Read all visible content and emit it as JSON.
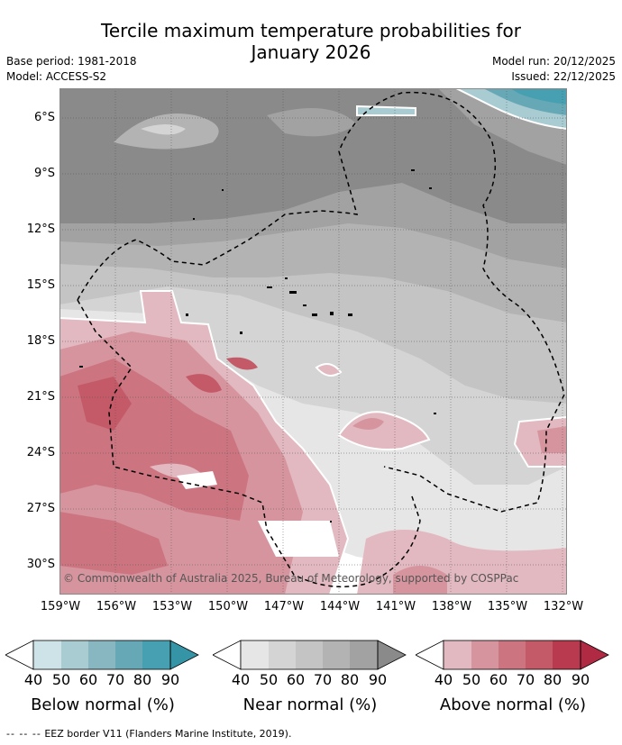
{
  "header": {
    "title_line1": "Tercile maximum temperature probabilities for",
    "title_line2": "January 2026",
    "base_period": "Base period: 1981-2018",
    "model": "Model: ACCESS-S2",
    "model_run": "Model run: 20/12/2025",
    "issued": "Issued: 22/12/2025"
  },
  "map": {
    "y_labels": [
      "6°S",
      "9°S",
      "12°S",
      "15°S",
      "18°S",
      "21°S",
      "24°S",
      "27°S",
      "30°S"
    ],
    "x_labels": [
      "159°W",
      "156°W",
      "153°W",
      "150°W",
      "147°W",
      "144°W",
      "141°W",
      "138°W",
      "135°W",
      "132°W"
    ],
    "copyright": "© Commonwealth of Australia 2025, Bureau of Meteorology, supported by COSPPac"
  },
  "legend": {
    "ticks": [
      "40",
      "50",
      "60",
      "70",
      "80",
      "90"
    ],
    "below": {
      "title": "Below normal (%)",
      "colors": [
        "#cde3e8",
        "#a9cbd2",
        "#88b7c2",
        "#67a8b6",
        "#46a0b1",
        "#3594a6"
      ]
    },
    "near": {
      "title": "Near normal (%)",
      "colors": [
        "#e6e6e6",
        "#d4d4d4",
        "#c4c4c4",
        "#b3b3b3",
        "#a2a2a2",
        "#8a8a8a"
      ]
    },
    "above": {
      "title": "Above normal (%)",
      "colors": [
        "#e2b9c0",
        "#d6959e",
        "#cc7581",
        "#c45a68",
        "#b93a4e",
        "#b02a44"
      ]
    }
  },
  "footer": {
    "eez_dash": "-- -- --",
    "eez_text": "EEZ border V11 (Flanders Marine Institute, 2019)."
  }
}
